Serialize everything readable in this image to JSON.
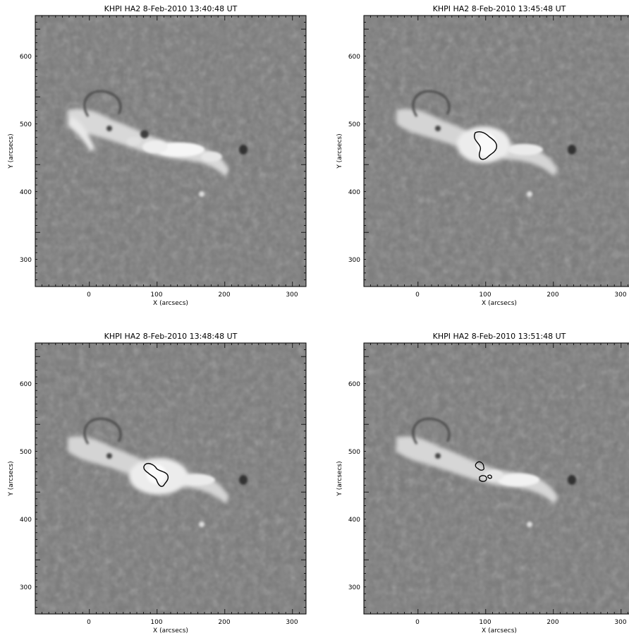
{
  "panels": [
    {
      "title": "KHPI HA2 8-Feb-2010 13:40:48 UT",
      "xlabel": "X (arcsecs)",
      "ylabel": "Y (arcsecs)",
      "xticks": [
        "0",
        "100",
        "200",
        "300"
      ],
      "yticks": [
        "300",
        "400",
        "500",
        "600"
      ],
      "contours": []
    },
    {
      "title": "KHPI HA2 8-Feb-2010 13:45:48 UT",
      "xlabel": "X (arcsecs)",
      "ylabel": "Y (arcsecs)",
      "xticks": [
        "0",
        "100",
        "200",
        "300"
      ],
      "yticks": [
        "300",
        "400",
        "500",
        "600"
      ],
      "contours": [
        "kernel-large"
      ]
    },
    {
      "title": "KHPI HA2 8-Feb-2010 13:48:48 UT",
      "xlabel": "X (arcsecs)",
      "ylabel": "Y (arcsecs)",
      "xticks": [
        "0",
        "100",
        "200",
        "300"
      ],
      "yticks": [
        "300",
        "400",
        "500",
        "600"
      ],
      "contours": [
        "kernel-medium"
      ]
    },
    {
      "title": "KHPI HA2 8-Feb-2010 13:51:48 UT",
      "xlabel": "X (arcsecs)",
      "ylabel": "Y (arcsecs)",
      "xticks": [
        "0",
        "100",
        "200",
        "300"
      ],
      "yticks": [
        "300",
        "400",
        "500",
        "600"
      ],
      "contours": [
        "kernel-small-a",
        "kernel-small-b",
        "kernel-small-c"
      ]
    }
  ],
  "axis_range": {
    "x": [
      -80,
      320
    ],
    "y": [
      260,
      660
    ]
  },
  "colors": {
    "background": "#7a7a7a",
    "bright": "#f4f4f4",
    "dark": "#3a3a3a",
    "contour": "#000000"
  }
}
